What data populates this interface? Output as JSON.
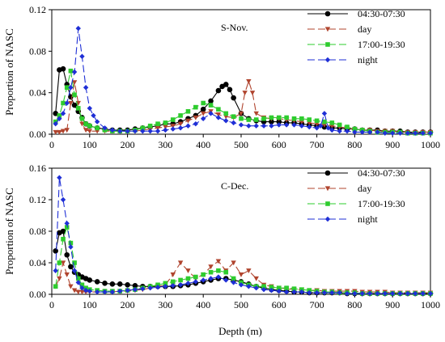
{
  "figure": {
    "xlabel": "Depth (m)"
  },
  "chart_data": [
    {
      "type": "line",
      "panel_label": "S-Nov.",
      "ylabel": "Proportion of NASC",
      "xlim": [
        0,
        1000
      ],
      "ylim": [
        0,
        0.12
      ],
      "x_ticks": [
        "0",
        "100",
        "200",
        "300",
        "400",
        "500",
        "600",
        "700",
        "800",
        "900",
        "1000"
      ],
      "y_ticks": [
        "0.00",
        "0.04",
        "0.08",
        "0.12"
      ],
      "grid": false,
      "legend_position": "top-right",
      "series": [
        {
          "name": "04:30-07:30",
          "color": "#000000",
          "marker": "circle",
          "line": "solid",
          "x": [
            10,
            20,
            30,
            40,
            50,
            60,
            70,
            80,
            90,
            100,
            120,
            140,
            160,
            180,
            200,
            220,
            240,
            260,
            280,
            300,
            320,
            340,
            360,
            380,
            400,
            420,
            440,
            450,
            460,
            470,
            480,
            500,
            520,
            540,
            560,
            580,
            600,
            620,
            640,
            660,
            680,
            700,
            720,
            740,
            760,
            780,
            800,
            820,
            840,
            860,
            880,
            900,
            920,
            940,
            960,
            980,
            1000
          ],
          "y": [
            0.02,
            0.062,
            0.063,
            0.048,
            0.036,
            0.028,
            0.022,
            0.016,
            0.01,
            0.008,
            0.006,
            0.005,
            0.004,
            0.004,
            0.004,
            0.005,
            0.006,
            0.007,
            0.008,
            0.01,
            0.01,
            0.012,
            0.015,
            0.018,
            0.024,
            0.032,
            0.042,
            0.046,
            0.048,
            0.043,
            0.035,
            0.02,
            0.015,
            0.013,
            0.012,
            0.012,
            0.012,
            0.011,
            0.011,
            0.01,
            0.009,
            0.008,
            0.007,
            0.006,
            0.006,
            0.005,
            0.005,
            0.004,
            0.004,
            0.004,
            0.003,
            0.003,
            0.003,
            0.002,
            0.002,
            0.002,
            0.002
          ]
        },
        {
          "name": "day",
          "color": "#b0442e",
          "marker": "triangle-down",
          "line": "dash",
          "x": [
            10,
            20,
            30,
            40,
            50,
            60,
            70,
            80,
            90,
            100,
            120,
            140,
            160,
            180,
            200,
            220,
            240,
            260,
            280,
            300,
            320,
            340,
            360,
            380,
            400,
            420,
            440,
            460,
            480,
            500,
            510,
            520,
            530,
            540,
            560,
            580,
            600,
            620,
            640,
            660,
            680,
            700,
            720,
            740,
            760,
            780,
            800,
            820,
            840,
            860,
            880,
            900,
            920,
            940,
            960,
            980,
            1000
          ],
          "y": [
            0.002,
            0.002,
            0.003,
            0.004,
            0.03,
            0.05,
            0.03,
            0.01,
            0.004,
            0.003,
            0.003,
            0.003,
            0.003,
            0.003,
            0.003,
            0.003,
            0.004,
            0.005,
            0.006,
            0.007,
            0.008,
            0.01,
            0.013,
            0.016,
            0.02,
            0.022,
            0.019,
            0.017,
            0.016,
            0.02,
            0.04,
            0.051,
            0.04,
            0.02,
            0.016,
            0.015,
            0.015,
            0.014,
            0.013,
            0.012,
            0.011,
            0.01,
            0.009,
            0.008,
            0.007,
            0.006,
            0.005,
            0.004,
            0.004,
            0.003,
            0.003,
            0.003,
            0.002,
            0.002,
            0.002,
            0.002,
            0.002
          ]
        },
        {
          "name": "17:00-19:30",
          "color": "#2ecc2e",
          "marker": "square",
          "line": "dash",
          "x": [
            10,
            20,
            30,
            40,
            50,
            60,
            70,
            80,
            90,
            100,
            120,
            140,
            160,
            180,
            200,
            220,
            240,
            260,
            280,
            300,
            320,
            340,
            360,
            380,
            400,
            420,
            440,
            460,
            480,
            500,
            520,
            540,
            560,
            580,
            600,
            620,
            640,
            660,
            680,
            700,
            720,
            740,
            760,
            780,
            800,
            820,
            840,
            860,
            880,
            900,
            920,
            940,
            960,
            980,
            1000
          ],
          "y": [
            0.012,
            0.018,
            0.03,
            0.045,
            0.061,
            0.038,
            0.025,
            0.015,
            0.01,
            0.008,
            0.006,
            0.004,
            0.003,
            0.003,
            0.003,
            0.004,
            0.006,
            0.008,
            0.01,
            0.011,
            0.014,
            0.018,
            0.022,
            0.026,
            0.03,
            0.028,
            0.024,
            0.02,
            0.017,
            0.015,
            0.014,
            0.014,
            0.015,
            0.016,
            0.016,
            0.016,
            0.015,
            0.015,
            0.014,
            0.013,
            0.012,
            0.011,
            0.009,
            0.007,
            0.005,
            0.004,
            0.003,
            0.002,
            0.002,
            0.002,
            0.002,
            0.001,
            0.001,
            0.001,
            0.001
          ]
        },
        {
          "name": "night",
          "color": "#1f2fd6",
          "marker": "diamond",
          "line": "dash",
          "x": [
            10,
            20,
            30,
            40,
            50,
            60,
            70,
            80,
            90,
            100,
            110,
            120,
            140,
            160,
            180,
            200,
            220,
            240,
            260,
            280,
            300,
            320,
            340,
            360,
            380,
            400,
            420,
            440,
            460,
            480,
            500,
            520,
            540,
            560,
            580,
            600,
            620,
            640,
            660,
            680,
            700,
            710,
            720,
            730,
            740,
            760,
            780,
            800,
            820,
            840,
            860,
            880,
            900,
            920,
            940,
            960,
            980,
            1000
          ],
          "y": [
            0.01,
            0.015,
            0.02,
            0.03,
            0.045,
            0.06,
            0.102,
            0.075,
            0.045,
            0.025,
            0.018,
            0.012,
            0.006,
            0.004,
            0.003,
            0.003,
            0.003,
            0.003,
            0.003,
            0.003,
            0.004,
            0.005,
            0.006,
            0.008,
            0.01,
            0.015,
            0.02,
            0.016,
            0.013,
            0.011,
            0.009,
            0.008,
            0.008,
            0.008,
            0.008,
            0.009,
            0.009,
            0.009,
            0.008,
            0.007,
            0.006,
            0.008,
            0.02,
            0.006,
            0.004,
            0.003,
            0.003,
            0.002,
            0.002,
            0.002,
            0.002,
            0.001,
            0.001,
            0.001,
            0.001,
            0.001,
            0.001,
            0.001
          ]
        }
      ]
    },
    {
      "type": "line",
      "panel_label": "C-Dec.",
      "ylabel": "Proportion of NASC",
      "xlim": [
        0,
        1000
      ],
      "ylim": [
        0,
        0.16
      ],
      "x_ticks": [
        "0",
        "100",
        "200",
        "300",
        "400",
        "500",
        "600",
        "700",
        "800",
        "900",
        "1000"
      ],
      "y_ticks": [
        "0.00",
        "0.04",
        "0.08",
        "0.12",
        "0.16"
      ],
      "grid": false,
      "legend_position": "top-right",
      "series": [
        {
          "name": "04:30-07:30",
          "color": "#000000",
          "marker": "circle",
          "line": "solid",
          "x": [
            10,
            20,
            30,
            40,
            50,
            60,
            70,
            80,
            90,
            100,
            120,
            140,
            160,
            180,
            200,
            220,
            240,
            260,
            280,
            300,
            320,
            340,
            360,
            380,
            400,
            420,
            440,
            460,
            480,
            500,
            520,
            540,
            560,
            580,
            600,
            620,
            640,
            660,
            680,
            700,
            720,
            740,
            760,
            780,
            800,
            820,
            840,
            860,
            880,
            900,
            920,
            940,
            960,
            980,
            1000
          ],
          "y": [
            0.055,
            0.078,
            0.08,
            0.05,
            0.035,
            0.028,
            0.025,
            0.022,
            0.02,
            0.018,
            0.016,
            0.014,
            0.013,
            0.013,
            0.012,
            0.011,
            0.01,
            0.01,
            0.01,
            0.01,
            0.01,
            0.011,
            0.012,
            0.014,
            0.016,
            0.018,
            0.02,
            0.02,
            0.018,
            0.016,
            0.013,
            0.01,
            0.008,
            0.006,
            0.005,
            0.004,
            0.003,
            0.003,
            0.002,
            0.002,
            0.002,
            0.002,
            0.002,
            0.001,
            0.001,
            0.001,
            0.001,
            0.001,
            0.001,
            0.001,
            0.001,
            0.001,
            0.001,
            0.001,
            0.001
          ]
        },
        {
          "name": "day",
          "color": "#b0442e",
          "marker": "triangle-down",
          "line": "dash",
          "x": [
            10,
            20,
            30,
            40,
            50,
            60,
            70,
            80,
            90,
            100,
            120,
            140,
            160,
            180,
            200,
            220,
            240,
            260,
            280,
            300,
            320,
            340,
            360,
            380,
            400,
            420,
            440,
            460,
            480,
            500,
            520,
            540,
            560,
            580,
            600,
            620,
            640,
            660,
            680,
            700,
            720,
            740,
            760,
            780,
            800,
            820,
            840,
            860,
            880,
            900,
            920,
            940,
            960,
            980,
            1000
          ],
          "y": [
            0.01,
            0.02,
            0.04,
            0.025,
            0.01,
            0.005,
            0.003,
            0.003,
            0.003,
            0.003,
            0.003,
            0.003,
            0.003,
            0.004,
            0.004,
            0.005,
            0.006,
            0.008,
            0.01,
            0.012,
            0.025,
            0.04,
            0.03,
            0.02,
            0.025,
            0.035,
            0.042,
            0.03,
            0.04,
            0.025,
            0.03,
            0.02,
            0.012,
            0.01,
            0.008,
            0.007,
            0.006,
            0.006,
            0.005,
            0.005,
            0.004,
            0.004,
            0.004,
            0.004,
            0.004,
            0.003,
            0.003,
            0.003,
            0.003,
            0.002,
            0.002,
            0.002,
            0.002,
            0.002,
            0.002
          ]
        },
        {
          "name": "17:00-19:30",
          "color": "#2ecc2e",
          "marker": "square",
          "line": "dash",
          "x": [
            10,
            20,
            30,
            40,
            50,
            60,
            70,
            80,
            90,
            100,
            120,
            140,
            160,
            180,
            200,
            220,
            240,
            260,
            280,
            300,
            320,
            340,
            360,
            380,
            400,
            420,
            440,
            460,
            480,
            500,
            520,
            540,
            560,
            580,
            600,
            620,
            640,
            660,
            680,
            700,
            720,
            740,
            760,
            780,
            800,
            820,
            840,
            860,
            880,
            900,
            920,
            940,
            960,
            980,
            1000
          ],
          "y": [
            0.01,
            0.04,
            0.07,
            0.085,
            0.065,
            0.04,
            0.02,
            0.012,
            0.008,
            0.006,
            0.005,
            0.004,
            0.004,
            0.004,
            0.005,
            0.006,
            0.008,
            0.01,
            0.012,
            0.014,
            0.016,
            0.018,
            0.02,
            0.022,
            0.025,
            0.028,
            0.03,
            0.028,
            0.02,
            0.015,
            0.012,
            0.01,
            0.01,
            0.009,
            0.008,
            0.008,
            0.007,
            0.006,
            0.005,
            0.004,
            0.003,
            0.003,
            0.002,
            0.002,
            0.002,
            0.001,
            0.001,
            0.001,
            0.001,
            0.001,
            0.001,
            0.001,
            0.001,
            0.001,
            0.001
          ]
        },
        {
          "name": "night",
          "color": "#1f2fd6",
          "marker": "diamond",
          "line": "dash",
          "x": [
            10,
            20,
            30,
            40,
            50,
            60,
            70,
            80,
            90,
            100,
            120,
            140,
            160,
            180,
            200,
            220,
            240,
            260,
            280,
            300,
            320,
            340,
            360,
            380,
            400,
            420,
            440,
            460,
            480,
            500,
            520,
            540,
            560,
            580,
            600,
            620,
            640,
            660,
            680,
            700,
            720,
            740,
            760,
            780,
            800,
            820,
            840,
            860,
            880,
            900,
            920,
            940,
            960,
            980,
            1000
          ],
          "y": [
            0.03,
            0.148,
            0.12,
            0.09,
            0.06,
            0.03,
            0.015,
            0.008,
            0.005,
            0.004,
            0.003,
            0.003,
            0.003,
            0.004,
            0.005,
            0.006,
            0.007,
            0.008,
            0.009,
            0.01,
            0.011,
            0.012,
            0.014,
            0.016,
            0.018,
            0.02,
            0.022,
            0.018,
            0.015,
            0.012,
            0.01,
            0.008,
            0.006,
            0.005,
            0.004,
            0.003,
            0.003,
            0.003,
            0.002,
            0.002,
            0.002,
            0.002,
            0.002,
            0.001,
            0.001,
            0.001,
            0.001,
            0.001,
            0.001,
            0.001,
            0.001,
            0.001,
            0.001,
            0.001,
            0.001
          ]
        }
      ]
    }
  ]
}
